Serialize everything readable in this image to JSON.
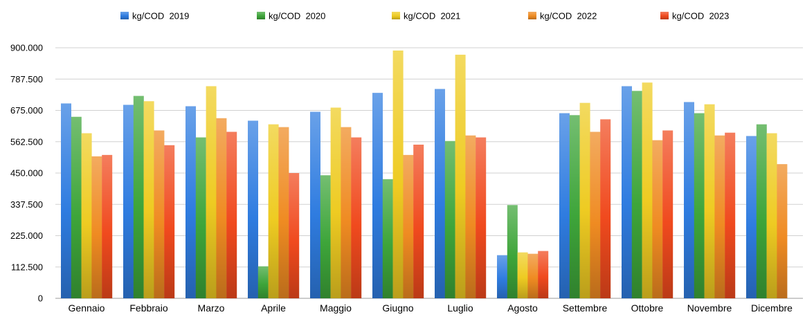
{
  "chart_data": {
    "type": "bar",
    "title": "",
    "xlabel": "",
    "ylabel": "",
    "ylim": [
      0,
      900000
    ],
    "yticks": [
      "0",
      "112.500",
      "225.000",
      "337.500",
      "450.000",
      "562.500",
      "675.000",
      "787.500",
      "900.000"
    ],
    "ytick_values": [
      0,
      112500,
      225000,
      337500,
      450000,
      562500,
      675000,
      787500,
      900000
    ],
    "grid": true,
    "legend_position": "top",
    "categories": [
      "Gennaio",
      "Febbraio",
      "Marzo",
      "Aprile",
      "Maggio",
      "Giugno",
      "Luglio",
      "Agosto",
      "Settembre",
      "Ottobre",
      "Novembre",
      "Dicembre"
    ],
    "series": [
      {
        "name": "kg/COD  2019",
        "color": "#2f7ce0",
        "values": [
          700000,
          695000,
          690000,
          638000,
          670000,
          738000,
          752000,
          155000,
          665000,
          762000,
          705000,
          583000
        ]
      },
      {
        "name": "kg/COD  2020",
        "color": "#3ea53a",
        "values": [
          652000,
          727000,
          578000,
          115000,
          442000,
          428000,
          565000,
          335000,
          658000,
          745000,
          665000,
          625000
        ]
      },
      {
        "name": "kg/COD  2021",
        "color": "#eecb22",
        "values": [
          593000,
          708000,
          762000,
          625000,
          685000,
          890000,
          875000,
          165000,
          702000,
          775000,
          697000,
          593000
        ]
      },
      {
        "name": "kg/COD  2022",
        "color": "#ef8b22",
        "values": [
          510000,
          603000,
          647000,
          615000,
          615000,
          515000,
          585000,
          160000,
          598000,
          568000,
          585000,
          482000
        ]
      },
      {
        "name": "kg/COD  2023",
        "color": "#f04a1e",
        "values": [
          515000,
          550000,
          598000,
          450000,
          578000,
          552000,
          578000,
          170000,
          643000,
          603000,
          595000,
          null
        ]
      }
    ]
  }
}
